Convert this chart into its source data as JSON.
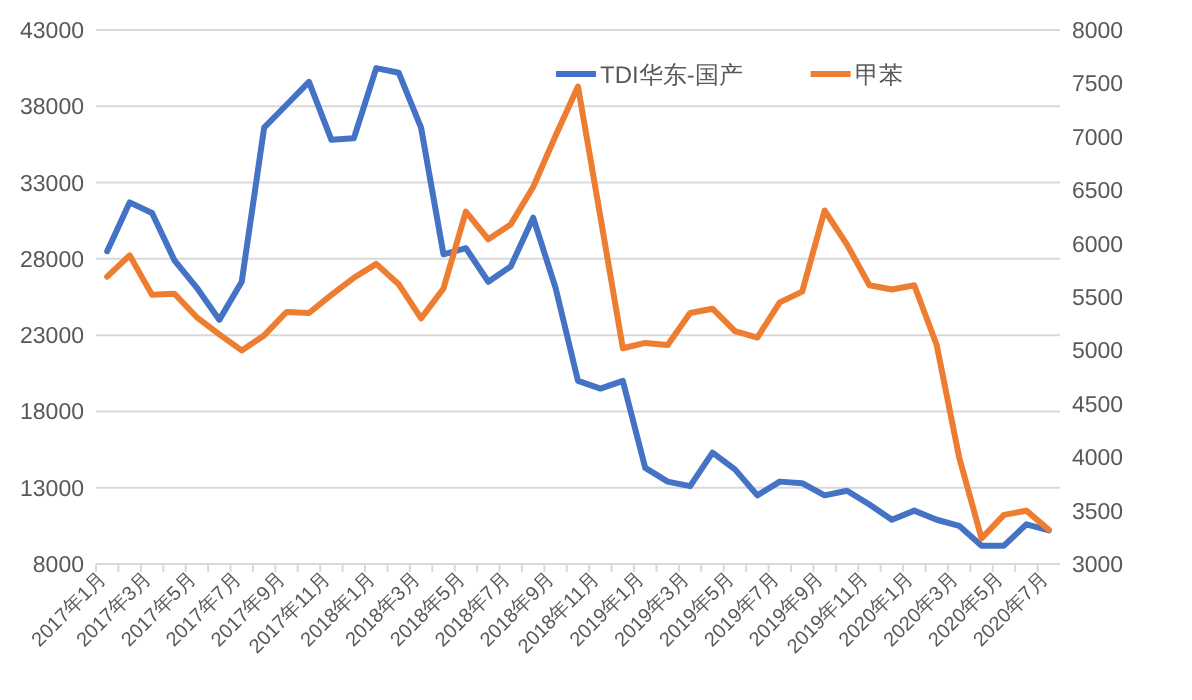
{
  "chart_data": {
    "type": "line",
    "categories": [
      "2017年1月",
      null,
      "2017年3月",
      null,
      "2017年5月",
      null,
      "2017年7月",
      null,
      "2017年9月",
      null,
      "2017年11月",
      null,
      "2018年1月",
      null,
      "2018年3月",
      null,
      "2018年5月",
      null,
      "2018年7月",
      null,
      "2018年9月",
      null,
      "2018年11月",
      null,
      "2019年1月",
      null,
      "2019年3月",
      null,
      "2019年5月",
      null,
      "2019年7月",
      null,
      "2019年9月",
      null,
      "2019年11月",
      null,
      "2020年1月",
      null,
      "2020年3月",
      null,
      "2020年5月",
      null,
      "2020年7月"
    ],
    "series": [
      {
        "name": "TDI华东-国产",
        "color": "#4472c4",
        "values": [
          28500,
          31700,
          31000,
          27900,
          26100,
          24000,
          26500,
          36600,
          38100,
          39600,
          35800,
          35900,
          40500,
          40200,
          36600,
          28300,
          28700,
          26500,
          27500,
          30700,
          26100,
          20000,
          19500,
          20000,
          14300,
          13400,
          13100,
          15300,
          14200,
          12500,
          13400,
          13300,
          12500,
          12800,
          11900,
          10900,
          11500,
          10900,
          10500,
          9200,
          9200,
          10600,
          10200
        ]
      },
      {
        "name": "甲苯",
        "color": "#ed7d31",
        "axis": "y2",
        "values": [
          5690,
          5890,
          5520,
          5530,
          5310,
          5150,
          5000,
          5140,
          5360,
          5350,
          5520,
          5680,
          5810,
          5620,
          5300,
          5580,
          6300,
          6040,
          6180,
          6530,
          7010,
          7470,
          6250,
          5020,
          5070,
          5050,
          5350,
          5390,
          5180,
          5120,
          5450,
          5550,
          6310,
          5990,
          5610,
          5570,
          5610,
          5050,
          4000,
          3240,
          3460,
          3500,
          3320
        ]
      }
    ],
    "ylim": [
      8000,
      43000
    ],
    "yticks": [
      8000,
      13000,
      18000,
      23000,
      28000,
      33000,
      38000,
      43000
    ],
    "y2lim": [
      3000,
      8000
    ],
    "y2ticks": [
      3000,
      3500,
      4000,
      4500,
      5000,
      5500,
      6000,
      6500,
      7000,
      7500,
      8000
    ],
    "grid": "y",
    "legend": "top",
    "marker": "none",
    "line_style": "solid"
  }
}
